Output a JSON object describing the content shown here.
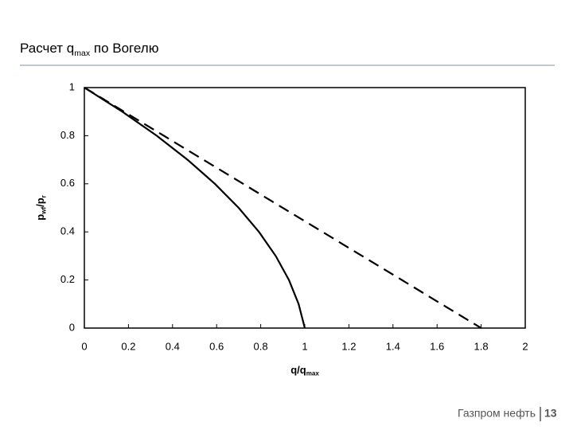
{
  "header": {
    "title": [
      "Расчет q",
      "max",
      " по Вогелю"
    ]
  },
  "chart_data": {
    "type": "line",
    "x_label": [
      "q/q",
      "max"
    ],
    "y_label": [
      "p",
      "wf",
      "/p",
      "r"
    ],
    "series": [
      {
        "color": "#000000",
        "dash": false,
        "x": [
          0,
          0.172,
          0.328,
          0.468,
          0.592,
          0.7,
          0.792,
          0.868,
          0.928,
          0.972,
          1
        ],
        "y": [
          1,
          0.9,
          0.8,
          0.7,
          0.6,
          0.5,
          0.4,
          0.3,
          0.2,
          0.1,
          0
        ]
      },
      {
        "color": "#000000",
        "dash": true,
        "x": [
          0,
          1.8
        ],
        "y": [
          1,
          0
        ]
      }
    ],
    "xlim": [
      0,
      2
    ],
    "xticks": [
      0,
      0.2,
      0.4,
      0.6,
      0.8,
      1,
      1.2,
      1.4,
      1.6,
      1.8,
      2
    ],
    "ylim": [
      0,
      1
    ],
    "yticks": [
      0,
      0.2,
      0.4,
      0.6,
      0.8,
      1
    ],
    "grid": false
  },
  "footer": {
    "company": "Газпром нефть",
    "page": "13"
  }
}
